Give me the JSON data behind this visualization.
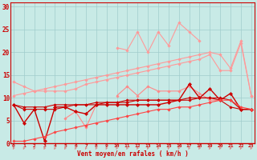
{
  "background_color": "#c8eae6",
  "grid_color": "#a0cccc",
  "x_values": [
    0,
    1,
    2,
    3,
    4,
    5,
    6,
    7,
    8,
    9,
    10,
    11,
    12,
    13,
    14,
    15,
    16,
    17,
    18,
    19,
    20,
    21,
    22,
    23
  ],
  "xlabel": "Vent moyen/en rafales ( km/h )",
  "xlabel_color": "#cc0000",
  "tick_color": "#cc0000",
  "arrow_color": "#dd8888",
  "lines": [
    {
      "name": "pink_wavy_top",
      "color": "#ff9999",
      "lw": 0.8,
      "marker": "D",
      "markersize": 1.8,
      "y": [
        null,
        null,
        null,
        null,
        null,
        null,
        null,
        null,
        null,
        null,
        21.0,
        20.5,
        24.5,
        20.0,
        24.5,
        21.5,
        26.5,
        24.5,
        22.5,
        null,
        null,
        null,
        null,
        null
      ]
    },
    {
      "name": "pink_rising_upper",
      "color": "#ff9999",
      "lw": 0.8,
      "marker": "D",
      "markersize": 1.8,
      "y": [
        10.5,
        11.0,
        11.5,
        12.0,
        12.5,
        13.0,
        13.5,
        14.0,
        14.5,
        15.0,
        15.5,
        16.0,
        16.5,
        17.0,
        17.5,
        18.0,
        18.5,
        19.0,
        19.5,
        20.0,
        19.5,
        16.5,
        22.5,
        10.5
      ]
    },
    {
      "name": "pink_rising_lower",
      "color": "#ff9999",
      "lw": 0.8,
      "marker": "D",
      "markersize": 1.8,
      "y": [
        13.5,
        12.5,
        11.5,
        11.5,
        11.5,
        11.5,
        12.0,
        13.0,
        13.5,
        14.0,
        14.5,
        15.0,
        15.5,
        16.0,
        16.5,
        17.0,
        17.5,
        18.0,
        18.5,
        19.5,
        16.0,
        16.0,
        22.0,
        10.5
      ]
    },
    {
      "name": "pink_jagged",
      "color": "#ff8888",
      "lw": 0.8,
      "marker": "D",
      "markersize": 1.8,
      "y": [
        null,
        null,
        null,
        null,
        null,
        5.5,
        7.0,
        3.5,
        8.5,
        null,
        10.5,
        12.5,
        10.5,
        12.5,
        11.5,
        11.5,
        11.5,
        12.5,
        11.0,
        9.5,
        9.5,
        null,
        null,
        null
      ]
    },
    {
      "name": "dark_jagged",
      "color": "#cc0000",
      "lw": 1.0,
      "marker": "D",
      "markersize": 2.2,
      "y": [
        8.5,
        4.5,
        7.5,
        0.5,
        8.0,
        8.0,
        7.0,
        6.5,
        8.5,
        8.5,
        8.5,
        8.5,
        8.5,
        8.5,
        8.5,
        9.0,
        9.5,
        13.0,
        10.0,
        12.0,
        9.5,
        11.0,
        7.5,
        7.5
      ]
    },
    {
      "name": "dark_smooth1",
      "color": "#cc0000",
      "lw": 0.8,
      "marker": "D",
      "markersize": 1.8,
      "y": [
        8.5,
        7.5,
        7.5,
        7.5,
        7.5,
        8.0,
        8.5,
        8.5,
        8.5,
        9.0,
        9.0,
        9.0,
        9.5,
        9.5,
        9.5,
        9.5,
        9.5,
        10.0,
        10.0,
        10.0,
        10.0,
        9.5,
        7.5,
        7.5
      ]
    },
    {
      "name": "dark_smooth2",
      "color": "#cc0000",
      "lw": 0.8,
      "marker": "D",
      "markersize": 1.8,
      "y": [
        8.5,
        8.0,
        8.0,
        8.0,
        8.5,
        8.5,
        8.5,
        8.5,
        9.0,
        9.0,
        9.0,
        9.5,
        9.5,
        9.5,
        9.5,
        9.5,
        9.5,
        9.5,
        10.0,
        10.0,
        9.5,
        8.0,
        7.5,
        7.5
      ]
    },
    {
      "name": "red_bottom_rising",
      "color": "#ff4444",
      "lw": 0.8,
      "marker": "D",
      "markersize": 1.8,
      "y": [
        0.5,
        0.5,
        1.0,
        1.5,
        2.5,
        3.0,
        3.5,
        4.0,
        4.5,
        5.0,
        5.5,
        6.0,
        6.5,
        7.0,
        7.5,
        7.5,
        8.0,
        8.0,
        8.5,
        9.0,
        9.5,
        9.5,
        8.0,
        7.5
      ]
    }
  ],
  "yticks": [
    0,
    5,
    10,
    15,
    20,
    25,
    30
  ],
  "ylim": [
    0,
    31
  ],
  "xlim": [
    -0.3,
    23.3
  ],
  "ytick_fontsize": 5.5,
  "xtick_fontsize": 4.5
}
